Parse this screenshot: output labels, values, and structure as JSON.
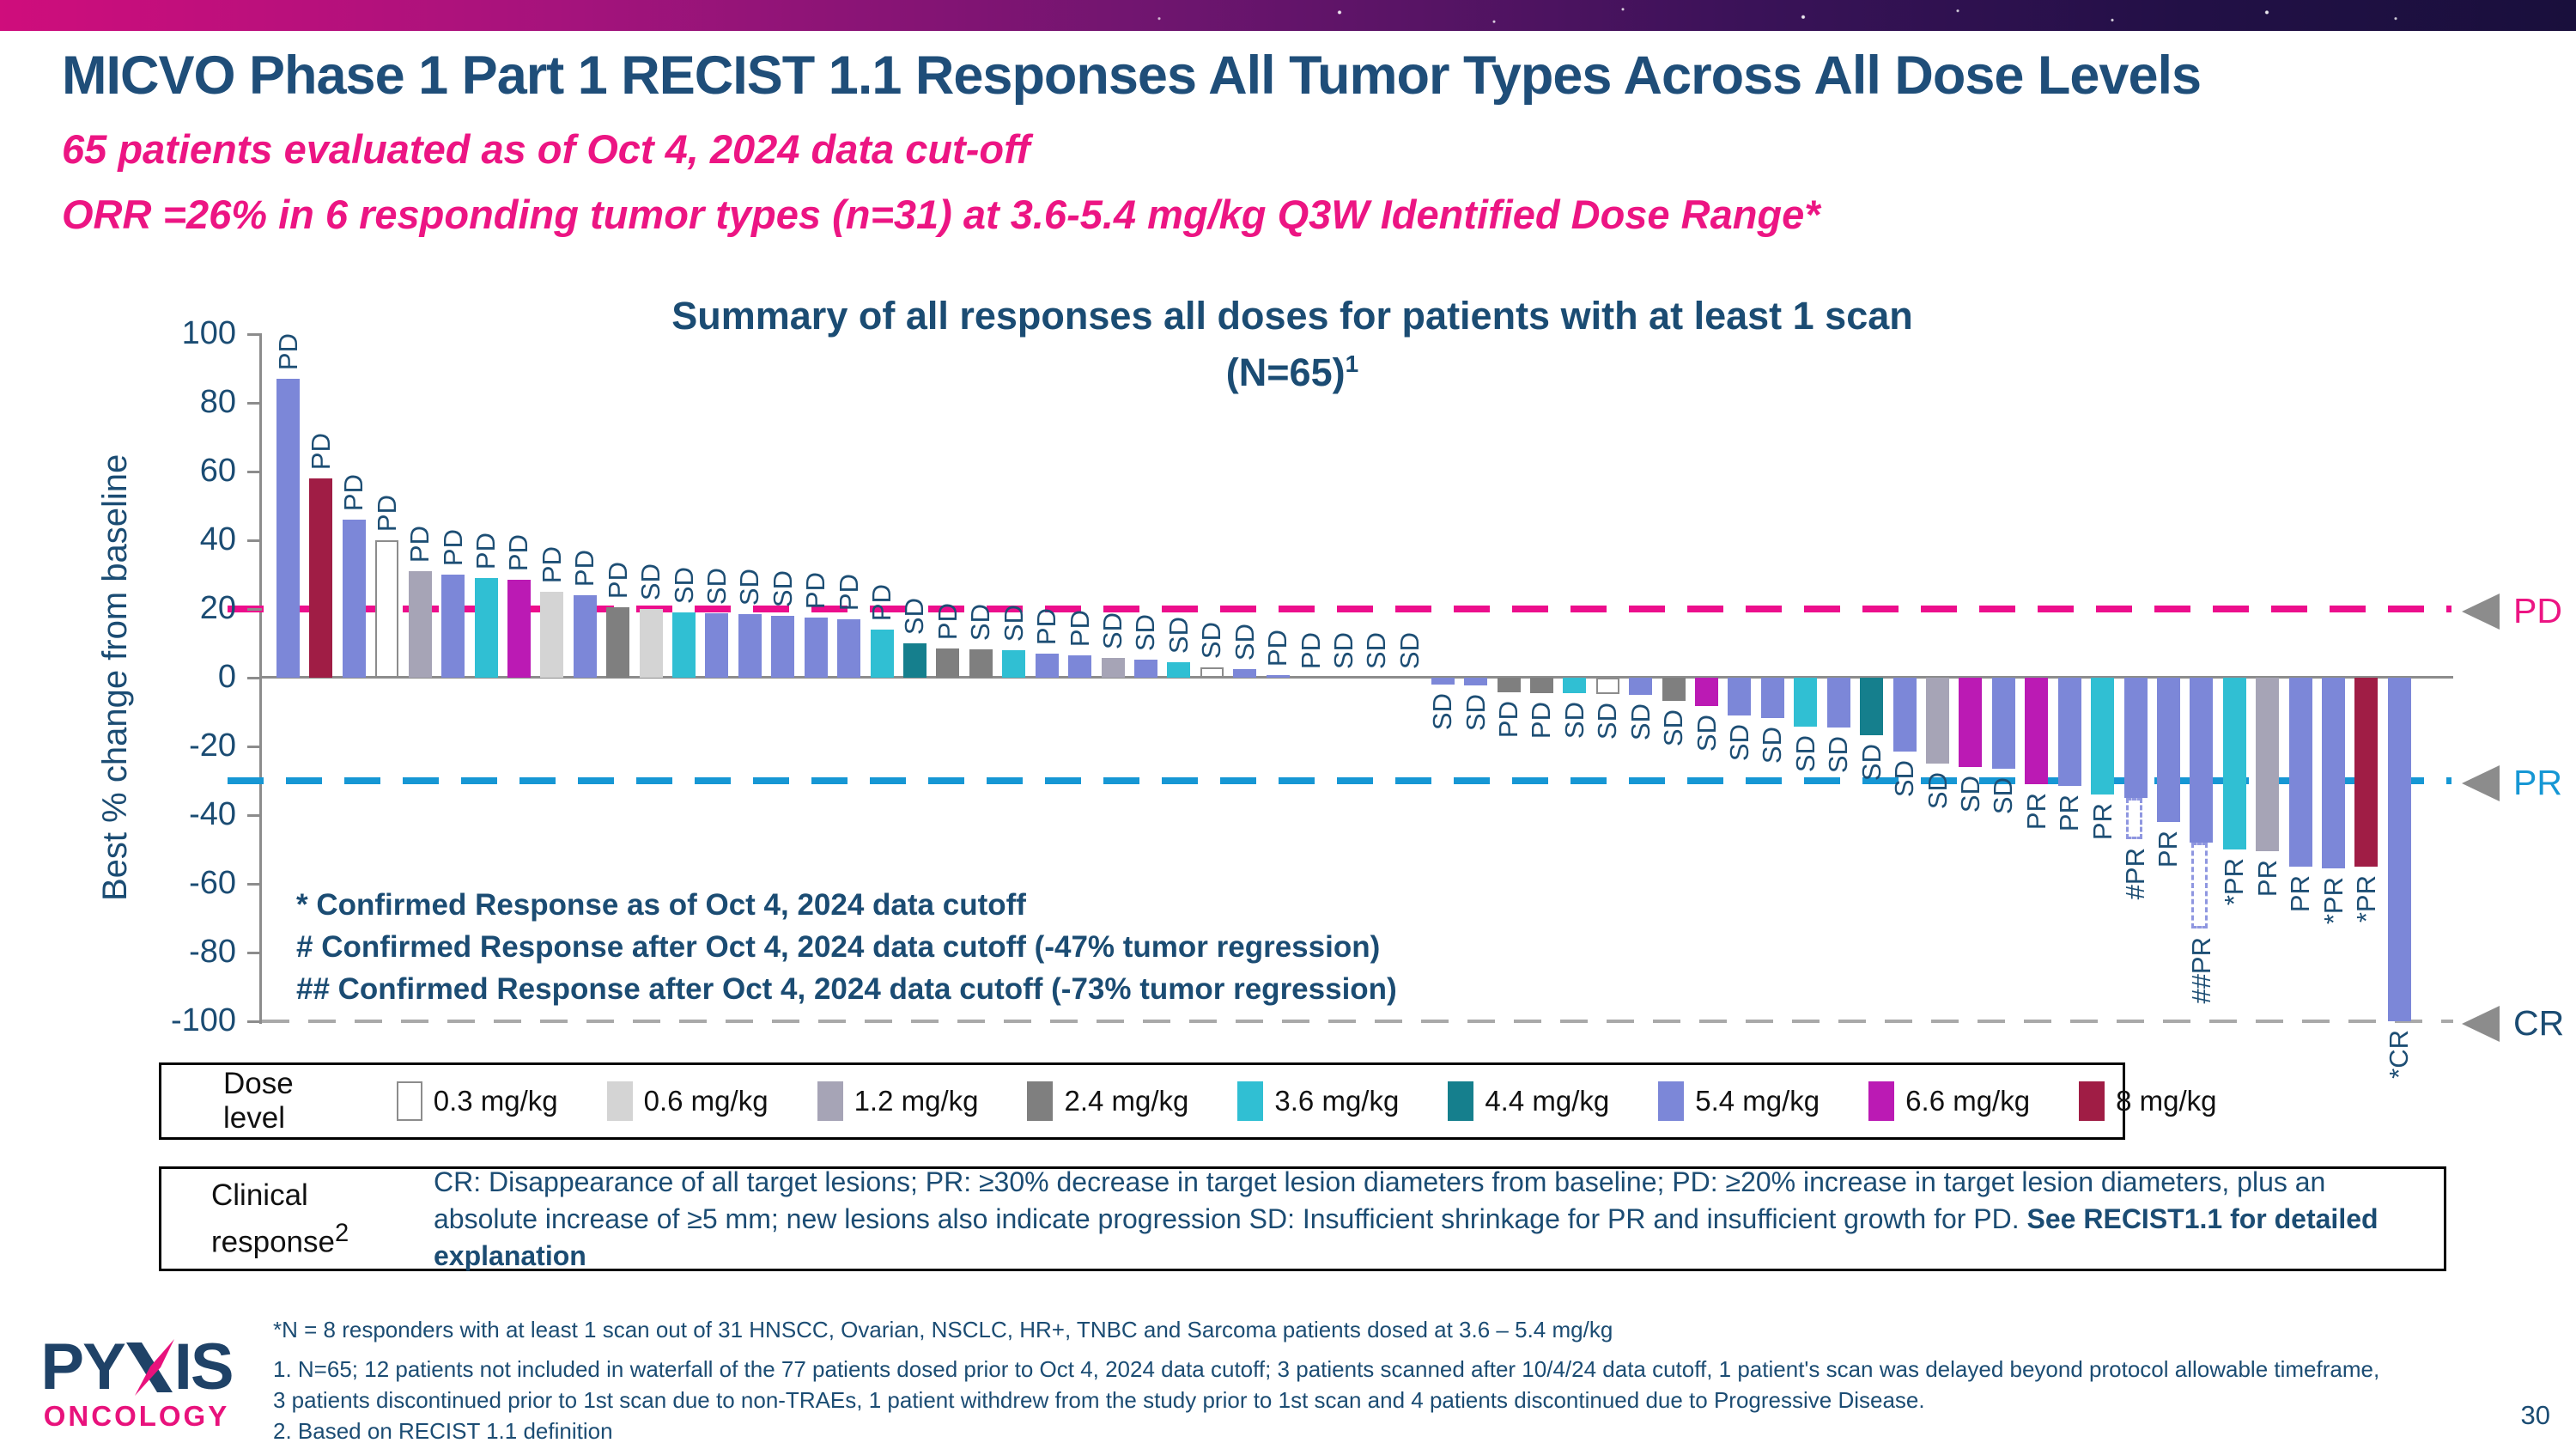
{
  "header": {
    "title": "MICVO Phase 1 Part 1 RECIST 1.1 Responses All Tumor Types Across All Dose Levels",
    "subtitle_line1": "65 patients evaluated as of Oct 4, 2024 data cut-off",
    "subtitle_line2": "ORR =26% in 6 responding tumor types (n=31) at 3.6-5.4 mg/kg Q3W Identified Dose Range*"
  },
  "chart_data": {
    "type": "bar",
    "title_line1": "Summary of all responses all doses for patients with at least 1 scan",
    "title_line2": "(N=65)",
    "title_superscript": "1",
    "ylabel": "Best % change from baseline",
    "ylim": [
      -100,
      100
    ],
    "y_ticks": [
      100,
      80,
      60,
      40,
      20,
      0,
      -20,
      -40,
      -60,
      -80,
      -100
    ],
    "grid": false,
    "reference_lines": [
      {
        "label": "PD",
        "value": 20,
        "color": "#ec0e8c"
      },
      {
        "label": "PR",
        "value": -30,
        "color": "#1697d4"
      },
      {
        "label": "CR",
        "value": -100,
        "color": "#a9a9a9"
      }
    ],
    "annotations": [
      "* Confirmed Response as of Oct 4, 2024 data cutoff",
      "# Confirmed Response after Oct 4, 2024 data cutoff (-47% tumor regression)",
      "## Confirmed Response after Oct 4, 2024 data cutoff (-73% tumor regression)"
    ],
    "bars": [
      {
        "v": 87,
        "dose": "5.4",
        "r": "PD"
      },
      {
        "v": 58,
        "dose": "8",
        "r": "PD"
      },
      {
        "v": 46,
        "dose": "5.4",
        "r": "PD"
      },
      {
        "v": 40,
        "dose": "0.3",
        "r": "PD"
      },
      {
        "v": 31,
        "dose": "1.2",
        "r": "PD"
      },
      {
        "v": 30,
        "dose": "5.4",
        "r": "PD"
      },
      {
        "v": 29,
        "dose": "3.6",
        "r": "PD"
      },
      {
        "v": 28.5,
        "dose": "6.6",
        "r": "PD"
      },
      {
        "v": 25,
        "dose": "0.6",
        "r": "PD"
      },
      {
        "v": 24,
        "dose": "5.4",
        "r": "PD"
      },
      {
        "v": 20.5,
        "dose": "2.4",
        "r": "PD"
      },
      {
        "v": 20,
        "dose": "0.6",
        "r": "SD"
      },
      {
        "v": 19,
        "dose": "3.6",
        "r": "SD"
      },
      {
        "v": 18.8,
        "dose": "5.4",
        "r": "SD"
      },
      {
        "v": 18.5,
        "dose": "5.4",
        "r": "SD"
      },
      {
        "v": 18,
        "dose": "5.4",
        "r": "SD"
      },
      {
        "v": 17.5,
        "dose": "5.4",
        "r": "PD"
      },
      {
        "v": 17,
        "dose": "5.4",
        "r": "PD"
      },
      {
        "v": 14,
        "dose": "3.6",
        "r": "PD"
      },
      {
        "v": 10,
        "dose": "4.4",
        "r": "SD"
      },
      {
        "v": 8.5,
        "dose": "2.4",
        "r": "PD"
      },
      {
        "v": 8.3,
        "dose": "2.4",
        "r": "SD"
      },
      {
        "v": 8,
        "dose": "3.6",
        "r": "SD"
      },
      {
        "v": 7,
        "dose": "5.4",
        "r": "PD"
      },
      {
        "v": 6.5,
        "dose": "5.4",
        "r": "PD"
      },
      {
        "v": 5.8,
        "dose": "1.2",
        "r": "SD"
      },
      {
        "v": 5.3,
        "dose": "5.4",
        "r": "SD"
      },
      {
        "v": 4.6,
        "dose": "3.6",
        "r": "SD"
      },
      {
        "v": 3,
        "dose": "0.3",
        "r": "SD"
      },
      {
        "v": 2.4,
        "dose": "5.4",
        "r": "SD"
      },
      {
        "v": 0.8,
        "dose": "5.4",
        "r": "PD"
      },
      {
        "v": 0,
        "dose": null,
        "r": "PD"
      },
      {
        "v": 0,
        "dose": null,
        "r": "SD"
      },
      {
        "v": 0,
        "dose": null,
        "r": "SD"
      },
      {
        "v": 0,
        "dose": null,
        "r": "SD"
      },
      {
        "v": -2,
        "dose": "5.4",
        "r": "SD"
      },
      {
        "v": -2.3,
        "dose": "5.4",
        "r": "SD"
      },
      {
        "v": -4.2,
        "dose": "2.4",
        "r": "PD"
      },
      {
        "v": -4.4,
        "dose": "2.4",
        "r": "PD"
      },
      {
        "v": -4.5,
        "dose": "3.6",
        "r": "SD"
      },
      {
        "v": -4.8,
        "dose": "0.3",
        "r": "SD"
      },
      {
        "v": -5,
        "dose": "5.4",
        "r": "SD"
      },
      {
        "v": -6.8,
        "dose": "2.4",
        "r": "SD"
      },
      {
        "v": -8.3,
        "dose": "6.6",
        "r": "SD"
      },
      {
        "v": -11,
        "dose": "5.4",
        "r": "SD"
      },
      {
        "v": -11.8,
        "dose": "5.4",
        "r": "SD"
      },
      {
        "v": -14.3,
        "dose": "3.6",
        "r": "SD"
      },
      {
        "v": -14.5,
        "dose": "5.4",
        "r": "SD"
      },
      {
        "v": -16.8,
        "dose": "4.4",
        "r": "SD"
      },
      {
        "v": -21.5,
        "dose": "5.4",
        "r": "SD"
      },
      {
        "v": -25,
        "dose": "1.2",
        "r": "SD"
      },
      {
        "v": -26,
        "dose": "6.6",
        "r": "SD"
      },
      {
        "v": -26.5,
        "dose": "5.4",
        "r": "SD"
      },
      {
        "v": -31,
        "dose": "6.6",
        "r": "PR"
      },
      {
        "v": -31.5,
        "dose": "5.4",
        "r": "PR"
      },
      {
        "v": -34,
        "dose": "3.6",
        "r": "PR"
      },
      {
        "v": -35,
        "dose": "5.4",
        "r": "#PR",
        "dash": -47
      },
      {
        "v": -42,
        "dose": "5.4",
        "r": "PR"
      },
      {
        "v": -48,
        "dose": "5.4",
        "r": "##PR",
        "dash": -73
      },
      {
        "v": -50,
        "dose": "3.6",
        "r": "*PR"
      },
      {
        "v": -50.5,
        "dose": "1.2",
        "r": "PR"
      },
      {
        "v": -55,
        "dose": "5.4",
        "r": "PR"
      },
      {
        "v": -55.5,
        "dose": "5.4",
        "r": "*PR"
      },
      {
        "v": -55,
        "dose": "8",
        "r": "*PR"
      },
      {
        "v": -100,
        "dose": "5.4",
        "r": "*CR"
      }
    ]
  },
  "legend": {
    "title": "Dose level",
    "items": [
      {
        "label": "0.3 mg/kg",
        "color": "#ffffff",
        "border": "#8c8c8c"
      },
      {
        "label": "0.6 mg/kg",
        "color": "#d4d4d4"
      },
      {
        "label": "1.2 mg/kg",
        "color": "#a6a4b6"
      },
      {
        "label": "2.4 mg/kg",
        "color": "#7f7f7f"
      },
      {
        "label": "3.6 mg/kg",
        "color": "#30bfd3"
      },
      {
        "label": "4.4 mg/kg",
        "color": "#157f8d"
      },
      {
        "label": "5.4 mg/kg",
        "color": "#7c87d8"
      },
      {
        "label": "6.6 mg/kg",
        "color": "#bb1ab4"
      },
      {
        "label": "8 mg/kg",
        "color": "#a01d45"
      }
    ]
  },
  "clinical": {
    "label": "Clinical response",
    "superscript": "2",
    "text": "CR: Disappearance of all target lesions; PR: ≥30% decrease in target lesion diameters from baseline; PD: ≥20% increase in target lesion diameters, plus an absolute increase of ≥5 mm; new lesions also indicate progression SD: Insufficient shrinkage for PR and insufficient growth for PD. ",
    "text_bold": "See RECIST1.1 for detailed explanation"
  },
  "footnotes": {
    "star": "*N = 8 responders with at least 1 scan out of 31 HNSCC, Ovarian, NSCLC, HR+, TNBC and Sarcoma patients dosed at 3.6 – 5.4 mg/kg",
    "note1": "1.  N=65; 12 patients not included in waterfall of the 77 patients dosed prior to Oct 4, 2024 data cutoff; 3 patients scanned after 10/4/24 data cutoff, 1 patient's scan was delayed beyond protocol allowable timeframe, 3 patients discontinued prior to 1st scan due to non-TRAEs, 1 patient withdrew from the study prior to 1st scan and 4 patients discontinued due to Progressive Disease.",
    "note2": "2. Based on RECIST 1.1 definition"
  },
  "logo": {
    "name_left": "PY",
    "name_right": "IS",
    "subtitle": "ONCOLOGY"
  },
  "page_number": "30"
}
